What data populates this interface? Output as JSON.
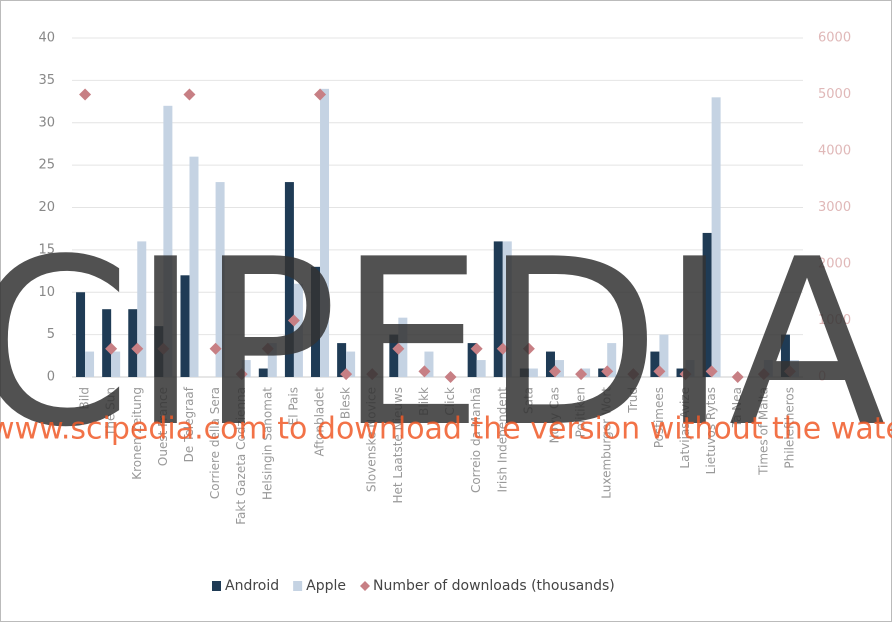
{
  "chart_data": {
    "type": "bar",
    "categories": [
      "Bild",
      "The Sun",
      "Kronen Zeitung",
      "Ouest France",
      "De Telegraaf",
      "Corriere della Sera",
      "Fakt Gazeta Codzienna",
      "Helsingin Sanomat",
      "El Pais",
      "Aftonbladet",
      "Blesk",
      "Slovenske Novice",
      "Het Laatste Nieuws",
      "Blikk",
      "Click",
      "Correio da Manhã",
      "Irish Independent",
      "Sata",
      "Novy Cas",
      "Politiken",
      "Luxemburger Wort",
      "Trud",
      "Postimees",
      "Latvijas Avize",
      "Lietuvos Rytas",
      "Ta Nea",
      "Times of Malta",
      "Phileleftheros"
    ],
    "series": [
      {
        "name": "Android",
        "color": "#1f3b55",
        "values": [
          10,
          8,
          8,
          6,
          12,
          0,
          0,
          1,
          23,
          13,
          4,
          0,
          5,
          0,
          0,
          4,
          16,
          1,
          3,
          0,
          1,
          0,
          3,
          1,
          17,
          0,
          0,
          5
        ]
      },
      {
        "name": "Apple",
        "color": "#c5d3e3",
        "values": [
          3,
          3,
          16,
          32,
          26,
          23,
          2,
          4,
          11,
          34,
          3,
          0,
          7,
          3,
          0,
          2,
          16,
          1,
          2,
          1,
          4,
          0,
          5,
          2,
          33,
          0,
          2,
          2
        ]
      },
      {
        "name": "Number of downloads (thousands)",
        "color": "#c77f84",
        "axis": "y2",
        "type": "scatter",
        "values": [
          5000,
          500,
          500,
          500,
          5000,
          500,
          50,
          500,
          1000,
          5000,
          50,
          50,
          500,
          100,
          0,
          500,
          500,
          500,
          100,
          50,
          100,
          50,
          100,
          50,
          100,
          0,
          50,
          100
        ]
      }
    ],
    "ylim": [
      0,
      40
    ],
    "yticks": [
      0,
      5,
      10,
      15,
      20,
      25,
      30,
      35,
      40
    ],
    "y2lim": [
      0,
      6000
    ],
    "y2ticks": [
      0,
      1000,
      2000,
      3000,
      4000,
      5000,
      6000
    ],
    "grid": true,
    "legend": "bottom",
    "watermark": "www.scipedia.com to download the version without the watermark",
    "watermark_logo": "SCIPEDIA"
  }
}
